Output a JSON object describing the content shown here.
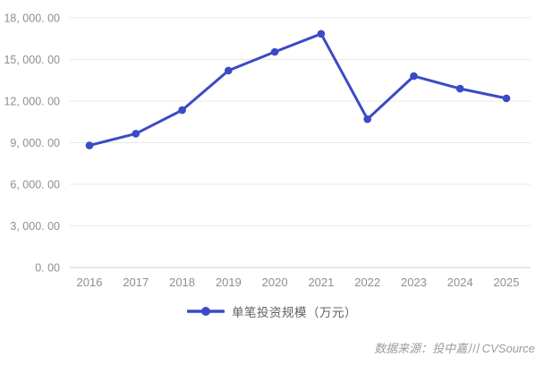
{
  "chart_data": {
    "type": "line",
    "title": "",
    "categories": [
      "2016",
      "2017",
      "2018",
      "2019",
      "2020",
      "2021",
      "2022",
      "2023",
      "2024",
      "2025"
    ],
    "series": [
      {
        "name": "单笔投资规模（万元）",
        "color": "#3B4AC6",
        "values": [
          8800,
          9650,
          11350,
          14200,
          15550,
          16850,
          10700,
          13800,
          12900,
          12200
        ]
      }
    ],
    "xlabel": "",
    "ylabel": "",
    "ylim": [
      0,
      18000
    ],
    "y_tick_interval": 3000,
    "y_tick_labels": [
      "0. 00",
      "3, 000. 00",
      "6, 000. 00",
      "9, 000. 00",
      "12, 000. 00",
      "15, 000. 00",
      "18, 000. 00"
    ],
    "grid": true,
    "legend_position": "bottom",
    "colors": {
      "line": "#3B4AC6",
      "grid_line": "#e8e8e8",
      "axis_line": "#cccccc",
      "tick_label": "#8e8e96",
      "legend_text": "#606060",
      "source_text": "#9a9aa2"
    }
  },
  "legend": {
    "label": "单笔投资规模（万元）"
  },
  "source_note": {
    "text": "数据来源：投中嘉川 CVSource"
  }
}
